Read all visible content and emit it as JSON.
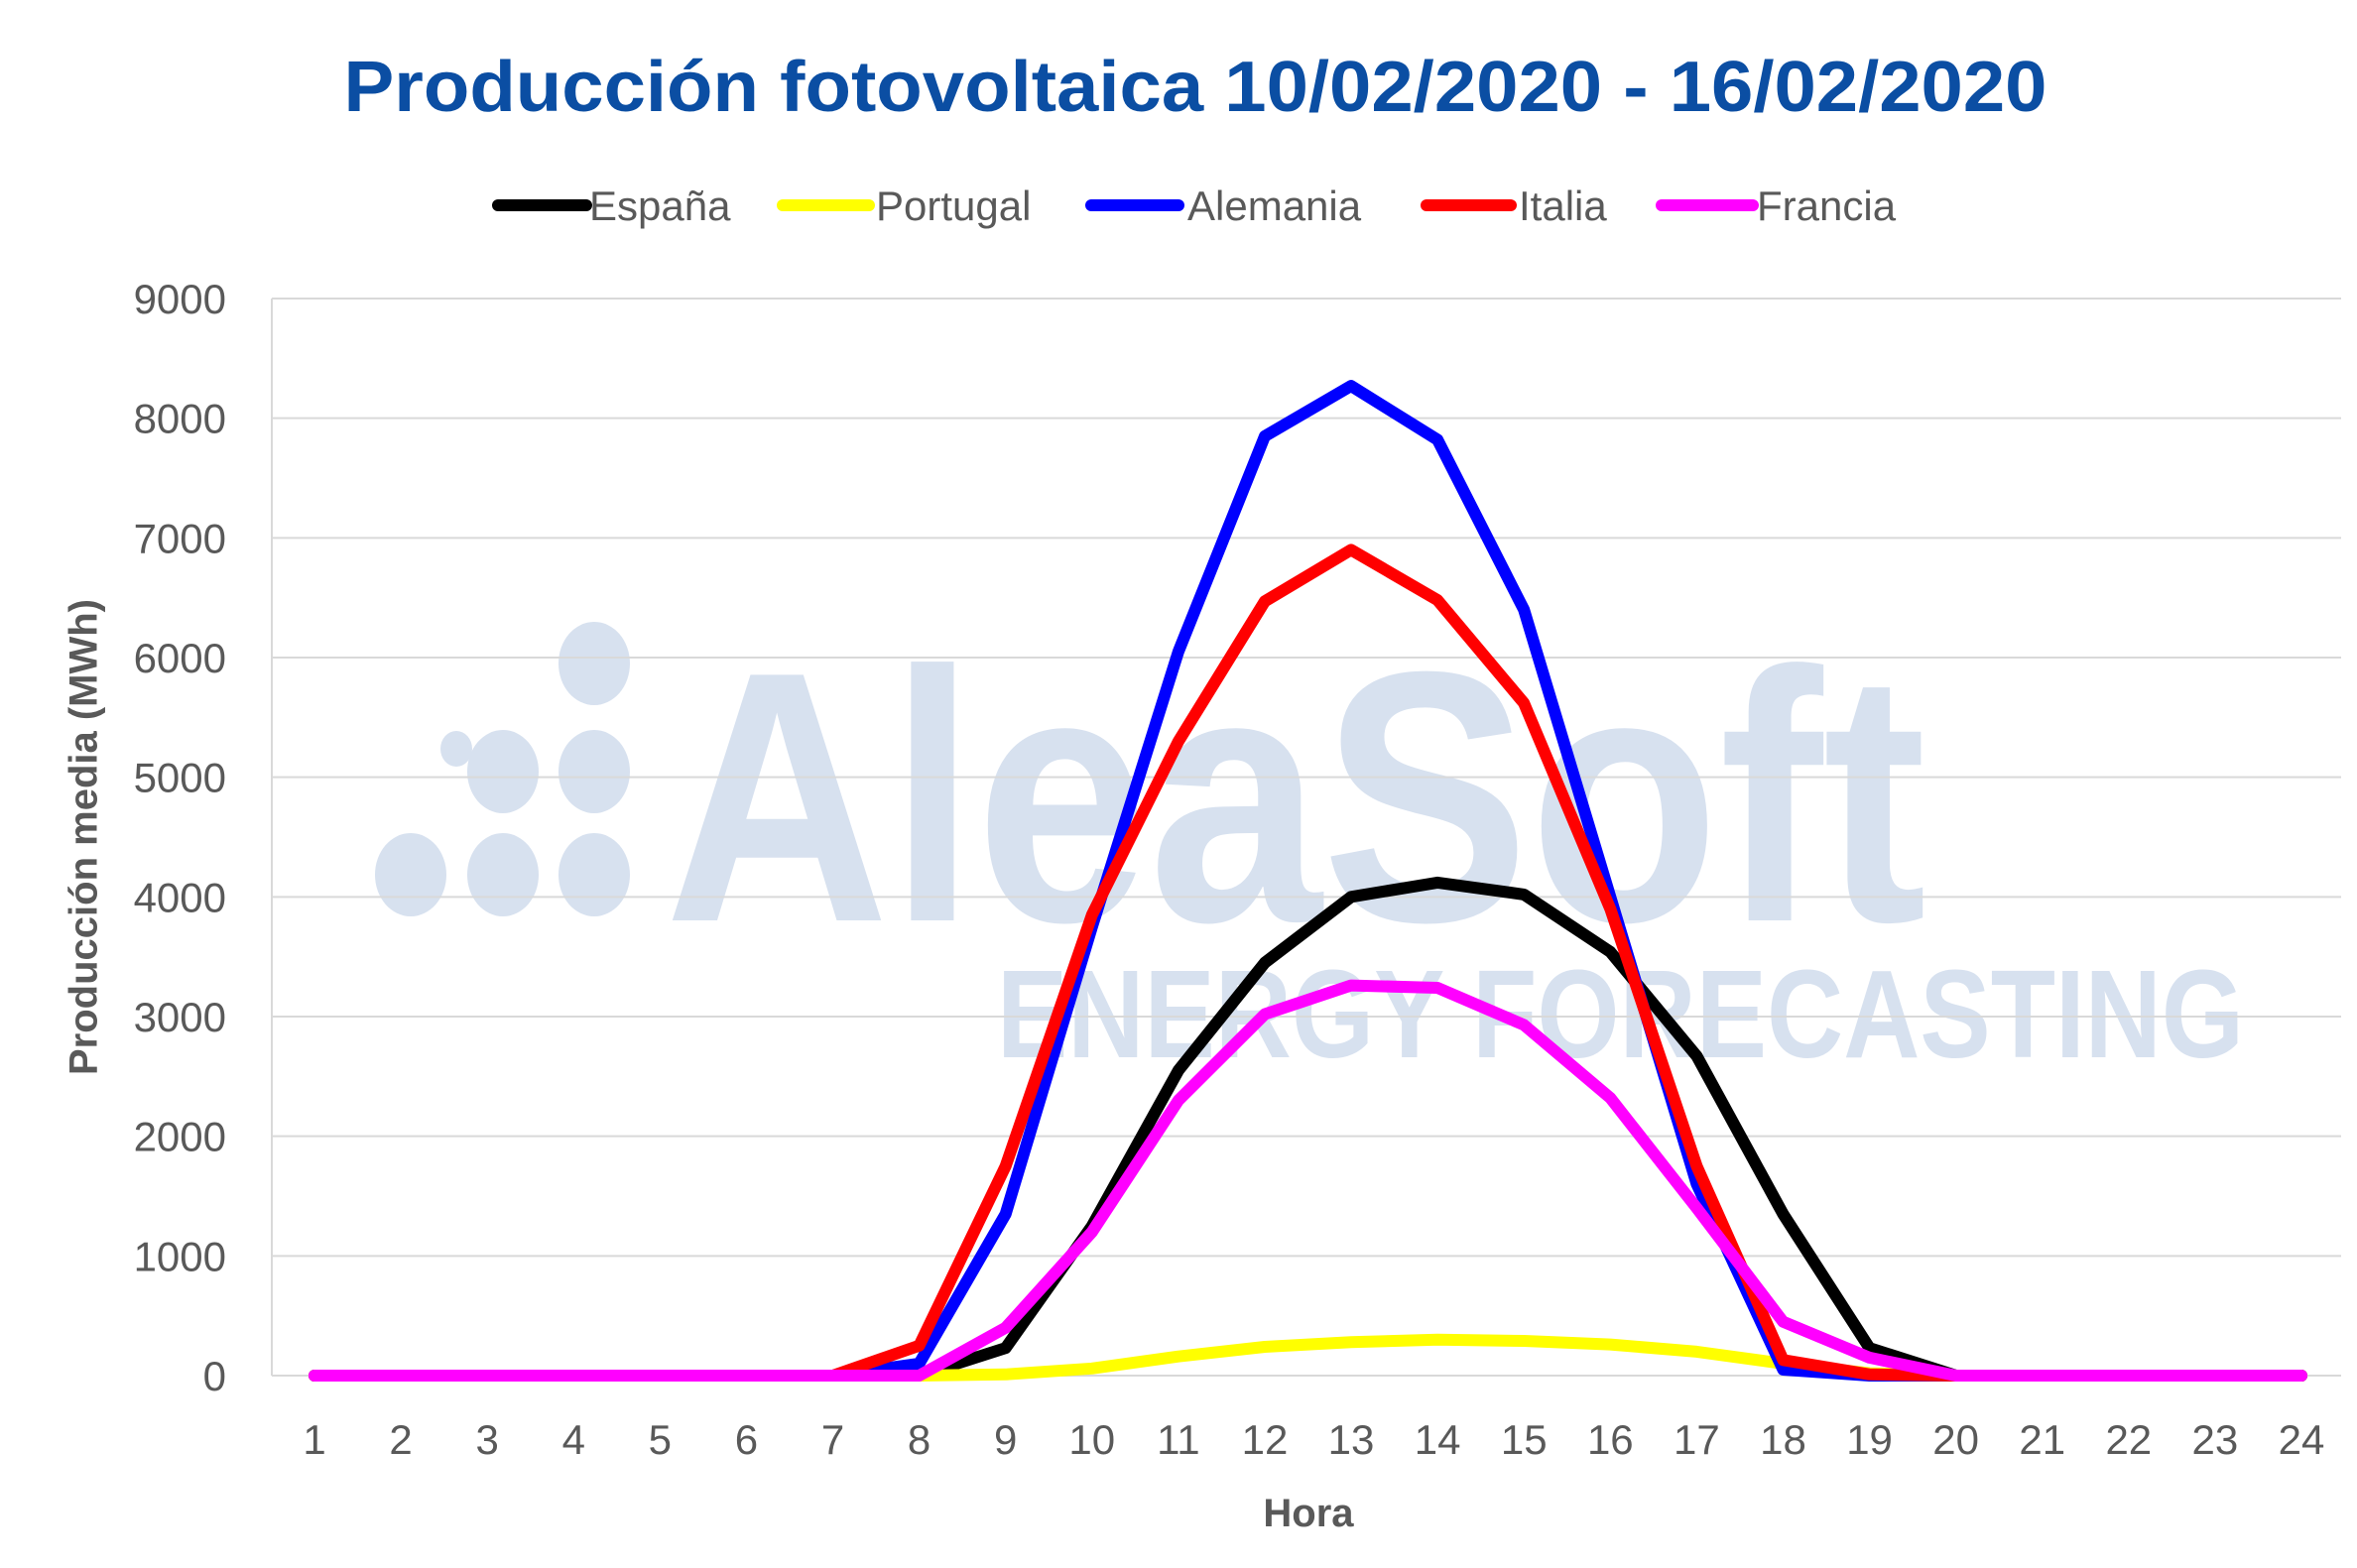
{
  "chart_data": {
    "type": "line",
    "title": "Producción fotovoltaica 10/02/2020 - 16/02/2020",
    "xlabel": "Hora",
    "ylabel": "Producción media (MWh)",
    "categories": [
      1,
      2,
      3,
      4,
      5,
      6,
      7,
      8,
      9,
      10,
      11,
      12,
      13,
      14,
      15,
      16,
      17,
      18,
      19,
      20,
      21,
      22,
      23,
      24
    ],
    "ylim": [
      0,
      9000
    ],
    "yticks": [
      0,
      1000,
      2000,
      3000,
      4000,
      5000,
      6000,
      7000,
      8000,
      9000
    ],
    "grid": true,
    "legend_position": "top",
    "series": [
      {
        "name": "España",
        "color": "#000000",
        "values": [
          0,
          0,
          0,
          0,
          0,
          0,
          0,
          0,
          230,
          1250,
          2550,
          3450,
          4000,
          4120,
          4020,
          3540,
          2670,
          1350,
          230,
          0,
          0,
          0,
          0,
          0
        ]
      },
      {
        "name": "Portugal",
        "color": "#ffff00",
        "values": [
          0,
          0,
          0,
          0,
          0,
          0,
          0,
          0,
          10,
          60,
          160,
          240,
          280,
          300,
          290,
          260,
          200,
          100,
          20,
          0,
          0,
          0,
          0,
          0
        ]
      },
      {
        "name": "Alemania",
        "color": "#0000ff",
        "values": [
          0,
          0,
          0,
          0,
          0,
          0,
          0,
          100,
          1350,
          3750,
          6050,
          7850,
          8270,
          7820,
          6400,
          4000,
          1600,
          50,
          0,
          0,
          0,
          0,
          0,
          0
        ]
      },
      {
        "name": "Italia",
        "color": "#ff0000",
        "values": [
          0,
          0,
          0,
          0,
          0,
          0,
          0,
          250,
          1750,
          3850,
          5300,
          6470,
          6900,
          6480,
          5620,
          3900,
          1750,
          130,
          10,
          0,
          0,
          0,
          0,
          0
        ]
      },
      {
        "name": "Francia",
        "color": "#ff00ff",
        "values": [
          0,
          0,
          0,
          0,
          0,
          0,
          0,
          0,
          400,
          1200,
          2300,
          3020,
          3260,
          3240,
          2930,
          2320,
          1400,
          450,
          150,
          0,
          0,
          0,
          0,
          0
        ]
      }
    ]
  },
  "watermark": {
    "brand": "AleaSoft",
    "tagline": "ENERGY FORECASTING"
  }
}
